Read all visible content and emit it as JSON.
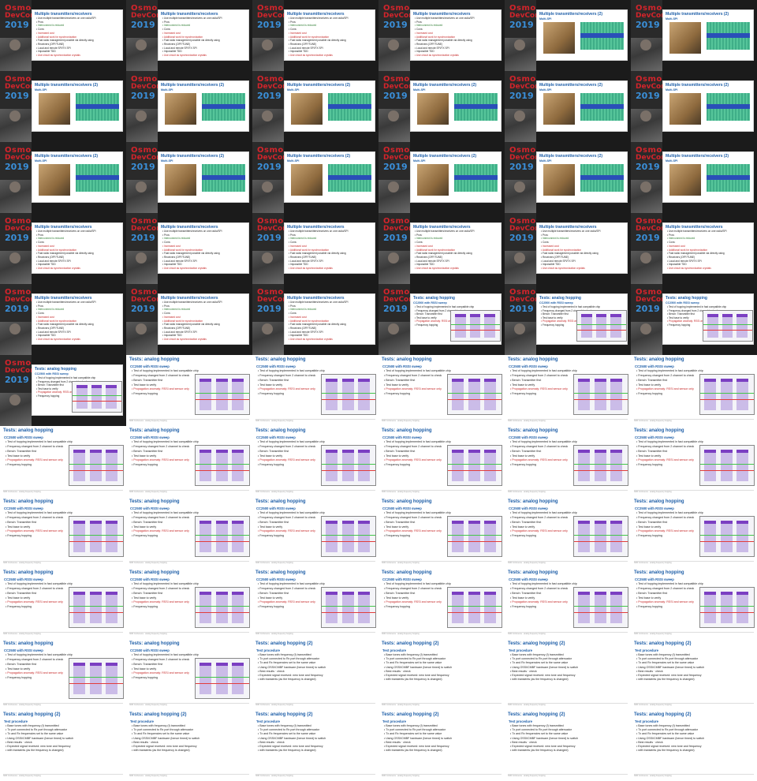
{
  "slides": {
    "multi": {
      "title": "Multiple transmitters/receivers",
      "bullets": [
        "Use multiple transmitters/receivers on one radio/SPI",
        "Pros:",
        "Interconnect is reduced",
        "Cons:",
        "Increased cost",
        "Additional work for synchronization",
        "Fast radio management possible via directly using",
        "Receivers (OFF/TUNE)",
        "Local and remote SPI/TX SPI",
        "Impossible TDD",
        "Use circuit as synchronization crystals"
      ]
    },
    "multi2": {
      "title": "Multiple transmitters/receivers (2)",
      "subtitle": "Multi-SPI"
    },
    "hopping": {
      "title": "Tests: analog hopping",
      "subtitle": "CC2500 with RSSI sweep",
      "bullets": [
        "Test of hopping implemented in fast compatible chip",
        "Frequency changed from 2 channel to check",
        "Bench: Transmitter first",
        "Test base to verify",
        "Propagation anomaly: RSSI and sensor only",
        "Frequency hopping"
      ]
    },
    "hopping2": {
      "title": "Tests: analog hopping (2)",
      "subtitle": "Test procedure",
      "bullets": [
        "Base tones with frequency (f) transmitted",
        "Tx port connected to Rx port through attenuator",
        "Tx and Rx frequencies set to the same value",
        "Using OSSI/CMBF hardware (hence timed) to switch",
        "Best results · check",
        "Expected signal received: new tone and frequency",
        "with transients (as the frequency is changed)"
      ]
    },
    "footer": "SDR Conference · analog frequency hopping"
  },
  "logo": {
    "line1": "OsmoDevCon",
    "line2": "DevCon",
    "line3": "2019"
  },
  "frames": [
    "multi",
    "multi",
    "multi",
    "multi",
    "multi2",
    "multi2",
    "multi2",
    "multi2",
    "multi2",
    "multi2",
    "multi2",
    "multi2",
    "multi2",
    "multi2",
    "multi2",
    "multi2",
    "multi2",
    "multi2",
    "multi",
    "multi",
    "multi",
    "multi",
    "multi",
    "multi",
    "multi",
    "multi",
    "multi",
    "hopping",
    "hopping",
    "hopping",
    "hopping",
    "hopping",
    "hopping",
    "hopping",
    "hopping",
    "hopping",
    "hopping",
    "hopping",
    "hopping",
    "hopping",
    "hopping",
    "hopping",
    "hopping",
    "hopping",
    "hopping",
    "hopping",
    "hopping",
    "hopping",
    "hopping",
    "hopping",
    "hopping",
    "hopping",
    "hopping",
    "hopping",
    "hopping",
    "hopping",
    "hopping2",
    "hopping2",
    "hopping2",
    "hopping2",
    "hopping2",
    "hopping2",
    "hopping2",
    "hopping2",
    "hopping2",
    "hopping2"
  ],
  "dark_count": 31,
  "colors": {
    "title": "#1f5fa8",
    "red": "#c62828",
    "green": "#2e7d32",
    "logo_red": "#d2242b",
    "logo_blue": "#3a8fd9"
  }
}
